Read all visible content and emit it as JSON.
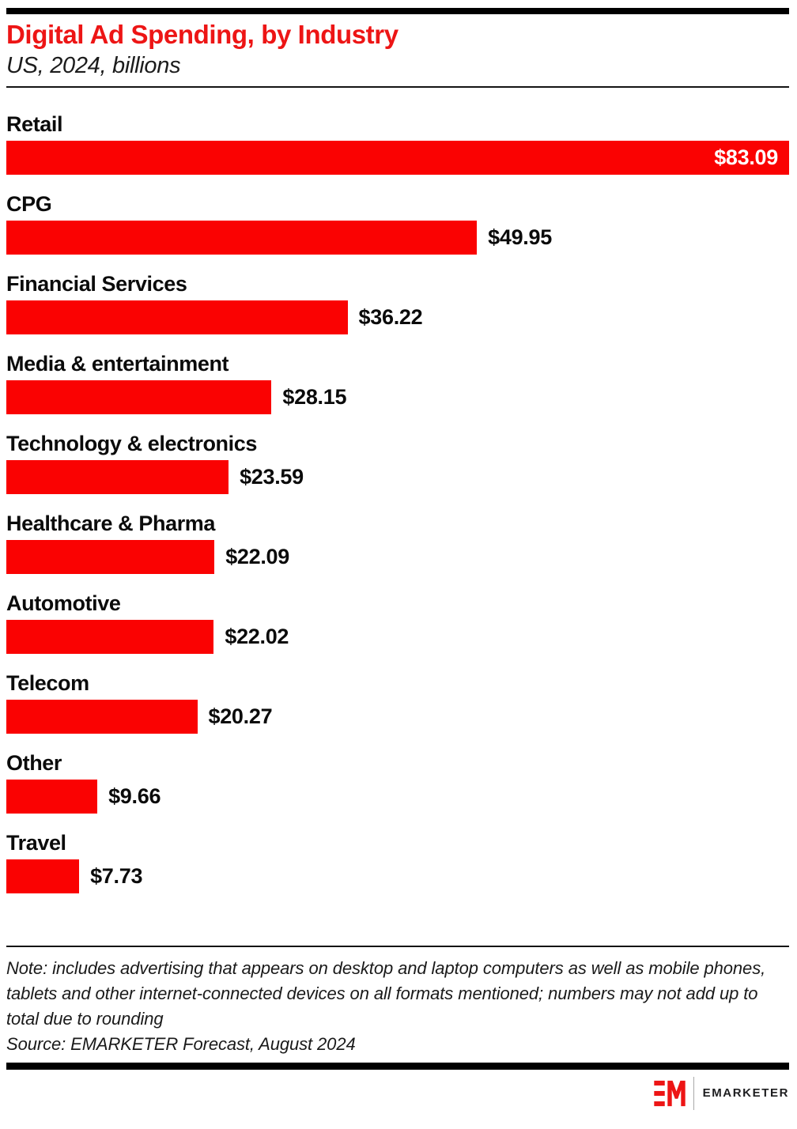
{
  "header": {
    "title": "Digital Ad Spending, by Industry",
    "subtitle": "US, 2024, billions"
  },
  "chart_data": {
    "type": "bar",
    "orientation": "horizontal",
    "title": "Digital Ad Spending, by Industry",
    "subtitle": "US, 2024, billions",
    "unit": "US$ billions",
    "categories": [
      "Retail",
      "CPG",
      "Financial Services",
      "Media & entertainment",
      "Technology & electronics",
      "Healthcare & Pharma",
      "Automotive",
      "Telecom",
      "Other",
      "Travel"
    ],
    "values": [
      83.09,
      49.95,
      36.22,
      28.15,
      23.59,
      22.09,
      22.02,
      20.27,
      9.66,
      7.73
    ],
    "value_labels": [
      "$83.09",
      "$49.95",
      "$36.22",
      "$28.15",
      "$23.59",
      "$22.09",
      "$22.02",
      "$20.27",
      "$9.66",
      "$7.73"
    ],
    "xlim": [
      0,
      83.09
    ],
    "grid": false,
    "legend": false,
    "bar_color": "#FA0202",
    "value_label_inside_color": "#FFFFFF",
    "value_label_outside_color": "#0B0B0B"
  },
  "footer": {
    "note": "Note: includes advertising that appears on desktop and laptop computers as well as mobile phones, tablets and other internet-connected devices on all formats mentioned; numbers may not add up to total due to rounding",
    "source": "Source: EMARKETER Forecast, August 2024"
  },
  "branding": {
    "monogram": "EM",
    "wordmark": "EMARKETER"
  },
  "colors": {
    "title_red": "#ED1515",
    "bar_red": "#FA0202",
    "logo_red": "#ED1515",
    "text_black": "#0B0B0B",
    "rule_black": "#141414"
  }
}
